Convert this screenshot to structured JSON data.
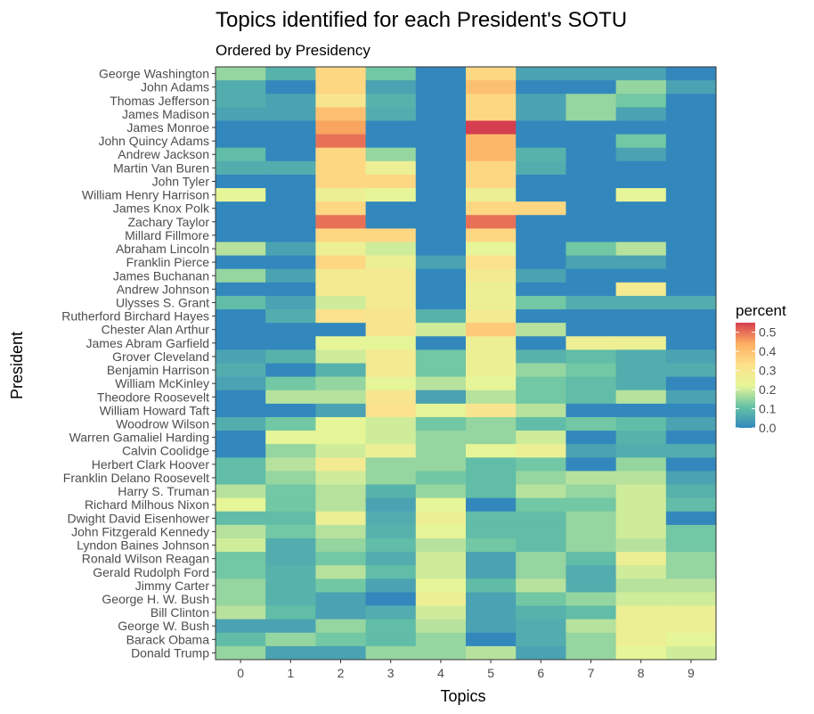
{
  "chart_data": {
    "type": "heatmap",
    "title": "Topics identified for each President's SOTU",
    "subtitle": "Ordered by Presidency",
    "xlabel": "Topics",
    "ylabel": "President",
    "legend": {
      "title": "percent",
      "ticks": [
        0.0,
        0.1,
        0.2,
        0.3,
        0.4,
        0.5
      ],
      "tick_labels": [
        "0.0",
        "0.1",
        "0.2",
        "0.3",
        "0.4",
        "0.5"
      ],
      "range": [
        0,
        0.55
      ],
      "position": "right"
    },
    "x": [
      "0",
      "1",
      "2",
      "3",
      "4",
      "5",
      "6",
      "7",
      "8",
      "9"
    ],
    "y": [
      "George Washington",
      "John Adams",
      "Thomas Jefferson",
      "James Madison",
      "James Monroe",
      "John Quincy Adams",
      "Andrew Jackson",
      "Martin Van Buren",
      "John Tyler",
      "William Henry Harrison",
      "James Knox Polk",
      "Zachary Taylor",
      "Millard Fillmore",
      "Abraham Lincoln",
      "Franklin Pierce",
      "James Buchanan",
      "Andrew Johnson",
      "Ulysses S. Grant",
      "Rutherford Birchard Hayes",
      "Chester Alan Arthur",
      "James Abram Garfield",
      "Grover Cleveland",
      "Benjamin Harrison",
      "William McKinley",
      "Theodore Roosevelt",
      "William Howard Taft",
      "Woodrow Wilson",
      "Warren Gamaliel Harding",
      "Calvin Coolidge",
      "Herbert Clark Hoover",
      "Franklin Delano Roosevelt",
      "Harry S. Truman",
      "Richard Milhous Nixon",
      "Dwight David Eisenhower",
      "John Fitzgerald Kennedy",
      "Lyndon Baines Johnson",
      "Ronald Wilson Reagan",
      "Gerald Rudolph Ford",
      "Jimmy Carter",
      "George H. W. Bush",
      "Bill Clinton",
      "George W. Bush",
      "Barack Obama",
      "Donald Trump"
    ],
    "values": [
      [
        0.15,
        0.08,
        0.35,
        0.12,
        0.0,
        0.35,
        0.05,
        0.05,
        0.05,
        0.0
      ],
      [
        0.07,
        0.0,
        0.35,
        0.05,
        0.0,
        0.4,
        0.0,
        0.0,
        0.15,
        0.05
      ],
      [
        0.07,
        0.05,
        0.3,
        0.08,
        0.0,
        0.35,
        0.05,
        0.15,
        0.12,
        0.0
      ],
      [
        0.05,
        0.05,
        0.4,
        0.07,
        0.0,
        0.35,
        0.05,
        0.15,
        0.05,
        0.0
      ],
      [
        0.0,
        0.0,
        0.45,
        0.0,
        0.0,
        0.55,
        0.0,
        0.0,
        0.0,
        0.0
      ],
      [
        0.0,
        0.0,
        0.5,
        0.0,
        0.0,
        0.42,
        0.0,
        0.0,
        0.12,
        0.0
      ],
      [
        0.1,
        0.0,
        0.35,
        0.15,
        0.0,
        0.42,
        0.08,
        0.0,
        0.05,
        0.0
      ],
      [
        0.07,
        0.07,
        0.35,
        0.25,
        0.0,
        0.35,
        0.07,
        0.0,
        0.0,
        0.0
      ],
      [
        0.0,
        0.0,
        0.35,
        0.35,
        0.0,
        0.35,
        0.0,
        0.0,
        0.0,
        0.0
      ],
      [
        0.22,
        0.0,
        0.25,
        0.22,
        0.0,
        0.25,
        0.0,
        0.0,
        0.22,
        0.0
      ],
      [
        0.0,
        0.0,
        0.35,
        0.0,
        0.0,
        0.35,
        0.35,
        0.0,
        0.0,
        0.0
      ],
      [
        0.0,
        0.0,
        0.5,
        0.0,
        0.0,
        0.5,
        0.0,
        0.0,
        0.0,
        0.0
      ],
      [
        0.0,
        0.0,
        0.35,
        0.35,
        0.0,
        0.35,
        0.0,
        0.0,
        0.0,
        0.0
      ],
      [
        0.18,
        0.05,
        0.25,
        0.2,
        0.0,
        0.22,
        0.0,
        0.12,
        0.18,
        0.0
      ],
      [
        0.0,
        0.0,
        0.35,
        0.25,
        0.05,
        0.32,
        0.0,
        0.05,
        0.05,
        0.0
      ],
      [
        0.15,
        0.05,
        0.28,
        0.28,
        0.0,
        0.28,
        0.05,
        0.0,
        0.0,
        0.0
      ],
      [
        0.0,
        0.0,
        0.28,
        0.28,
        0.0,
        0.25,
        0.0,
        0.0,
        0.28,
        0.0
      ],
      [
        0.1,
        0.05,
        0.2,
        0.28,
        0.0,
        0.25,
        0.12,
        0.07,
        0.07,
        0.07
      ],
      [
        0.0,
        0.07,
        0.32,
        0.3,
        0.08,
        0.28,
        0.0,
        0.0,
        0.0,
        0.0
      ],
      [
        0.0,
        0.0,
        0.0,
        0.3,
        0.2,
        0.38,
        0.18,
        0.0,
        0.0,
        0.0
      ],
      [
        0.0,
        0.0,
        0.22,
        0.22,
        0.0,
        0.25,
        0.0,
        0.25,
        0.25,
        0.0
      ],
      [
        0.05,
        0.08,
        0.2,
        0.28,
        0.12,
        0.25,
        0.08,
        0.1,
        0.07,
        0.05
      ],
      [
        0.07,
        0.0,
        0.08,
        0.28,
        0.12,
        0.25,
        0.15,
        0.12,
        0.07,
        0.07
      ],
      [
        0.05,
        0.12,
        0.15,
        0.22,
        0.18,
        0.22,
        0.12,
        0.1,
        0.07,
        0.0
      ],
      [
        0.0,
        0.18,
        0.18,
        0.3,
        0.05,
        0.18,
        0.12,
        0.1,
        0.18,
        0.05
      ],
      [
        0.0,
        0.0,
        0.05,
        0.32,
        0.22,
        0.3,
        0.18,
        0.0,
        0.0,
        0.0
      ],
      [
        0.07,
        0.12,
        0.22,
        0.2,
        0.12,
        0.15,
        0.1,
        0.12,
        0.1,
        0.05
      ],
      [
        0.0,
        0.22,
        0.22,
        0.2,
        0.15,
        0.15,
        0.2,
        0.0,
        0.08,
        0.0
      ],
      [
        0.0,
        0.15,
        0.2,
        0.25,
        0.15,
        0.22,
        0.25,
        0.05,
        0.07,
        0.07
      ],
      [
        0.1,
        0.18,
        0.28,
        0.15,
        0.15,
        0.1,
        0.12,
        0.0,
        0.15,
        0.0
      ],
      [
        0.1,
        0.15,
        0.2,
        0.15,
        0.12,
        0.1,
        0.15,
        0.18,
        0.18,
        0.05
      ],
      [
        0.18,
        0.12,
        0.18,
        0.08,
        0.15,
        0.1,
        0.18,
        0.15,
        0.2,
        0.08
      ],
      [
        0.22,
        0.12,
        0.18,
        0.05,
        0.22,
        0.0,
        0.12,
        0.12,
        0.2,
        0.1
      ],
      [
        0.1,
        0.1,
        0.25,
        0.07,
        0.25,
        0.1,
        0.1,
        0.15,
        0.2,
        0.0
      ],
      [
        0.18,
        0.12,
        0.18,
        0.08,
        0.22,
        0.1,
        0.1,
        0.15,
        0.2,
        0.12
      ],
      [
        0.2,
        0.07,
        0.15,
        0.1,
        0.18,
        0.12,
        0.1,
        0.15,
        0.18,
        0.12
      ],
      [
        0.12,
        0.07,
        0.12,
        0.07,
        0.2,
        0.05,
        0.15,
        0.1,
        0.25,
        0.15
      ],
      [
        0.12,
        0.08,
        0.18,
        0.1,
        0.2,
        0.05,
        0.15,
        0.07,
        0.2,
        0.15
      ],
      [
        0.15,
        0.08,
        0.12,
        0.05,
        0.22,
        0.1,
        0.18,
        0.07,
        0.18,
        0.18
      ],
      [
        0.15,
        0.08,
        0.05,
        0.0,
        0.25,
        0.05,
        0.12,
        0.15,
        0.2,
        0.2
      ],
      [
        0.18,
        0.1,
        0.05,
        0.07,
        0.2,
        0.05,
        0.08,
        0.1,
        0.25,
        0.25
      ],
      [
        0.05,
        0.05,
        0.15,
        0.1,
        0.18,
        0.05,
        0.07,
        0.18,
        0.25,
        0.25
      ],
      [
        0.1,
        0.15,
        0.12,
        0.1,
        0.15,
        0.0,
        0.07,
        0.15,
        0.25,
        0.22
      ],
      [
        0.15,
        0.05,
        0.05,
        0.15,
        0.15,
        0.18,
        0.05,
        0.15,
        0.22,
        0.2
      ]
    ],
    "grid": false
  }
}
